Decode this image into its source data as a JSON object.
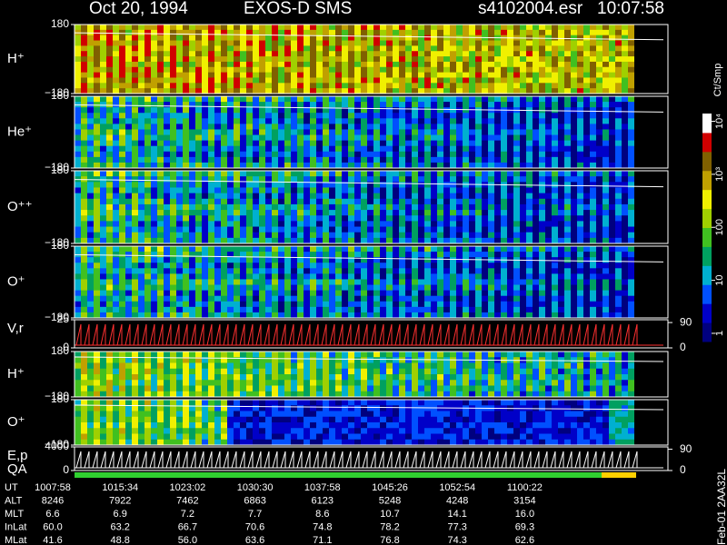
{
  "header": {
    "date": "Oct 20, 1994",
    "instrument": "EXOS-D SMS",
    "file": "s4102004.esr",
    "time": "10:07:58",
    "footer": "Feb-01 2AA32L"
  },
  "chart_data": [
    {
      "type": "spectrogram",
      "label": "H⁺",
      "ylim": [
        -180,
        180
      ],
      "yticks": [
        {
          "value": 180,
          "label": "180"
        },
        {
          "value": -180,
          "label": "−180"
        }
      ]
    },
    {
      "type": "spectrogram",
      "label": "He⁺",
      "ylim": [
        -180,
        180
      ],
      "yticks": [
        {
          "value": 180,
          "label": "180"
        },
        {
          "value": -180,
          "label": "−180"
        }
      ]
    },
    {
      "type": "spectrogram",
      "label": "O⁺⁺",
      "ylim": [
        -180,
        180
      ],
      "yticks": [
        {
          "value": 180,
          "label": "180"
        },
        {
          "value": -180,
          "label": "−180"
        }
      ]
    },
    {
      "type": "spectrogram",
      "label": "O⁺",
      "ylim": [
        -180,
        180
      ],
      "yticks": [
        {
          "value": 180,
          "label": "180"
        },
        {
          "value": -180,
          "label": "−180"
        }
      ]
    },
    {
      "type": "line",
      "label": "V,r",
      "color": "#ff3030",
      "ylim": [
        0,
        25
      ],
      "yticks": [
        25,
        0
      ],
      "y2lim": [
        0,
        100
      ],
      "y2ticks": [
        90,
        0
      ]
    },
    {
      "type": "spectrogram",
      "label": "H⁺",
      "ylim": [
        -180,
        180
      ],
      "yticks": [
        {
          "value": 180,
          "label": "180"
        },
        {
          "value": -180,
          "label": "−180"
        }
      ]
    },
    {
      "type": "spectrogram",
      "label": "O⁺",
      "ylim": [
        -180,
        180
      ],
      "yticks": [
        {
          "value": 180,
          "label": "180"
        },
        {
          "value": -180,
          "label": "−180"
        }
      ]
    },
    {
      "type": "line",
      "label": "E,p",
      "color": "#ffffff",
      "ylim": [
        0,
        4000
      ],
      "yticks": [
        4000,
        0
      ],
      "y2lim": [
        0,
        100
      ],
      "y2ticks": [
        90,
        0
      ]
    },
    {
      "type": "status",
      "label": "QA"
    },
    {
      "type": "colorbar",
      "label": "Ct/Smp",
      "log_scale": true,
      "ylim": [
        0.7,
        14000
      ],
      "yticks": [
        1,
        10,
        100,
        {
          "value": 1000,
          "label": "10³"
        },
        {
          "value": 10000,
          "label": "10⁴"
        }
      ]
    }
  ],
  "ephemeris": {
    "rows": [
      {
        "label": "UT",
        "values": [
          "1007:58",
          "1015:34",
          "1023:02",
          "1030:30",
          "1037:58",
          "1045:26",
          "1052:54",
          "1100:22"
        ]
      },
      {
        "label": "ALT",
        "values": [
          "8246",
          "7922",
          "7462",
          "6863",
          "6123",
          "5248",
          "4248",
          "3154"
        ]
      },
      {
        "label": "MLT",
        "values": [
          "6.6",
          "6.9",
          "7.2",
          "7.7",
          "8.6",
          "10.7",
          "14.1",
          "16.0"
        ]
      },
      {
        "label": "InLat",
        "values": [
          "60.0",
          "63.2",
          "66.7",
          "70.6",
          "74.8",
          "78.2",
          "77.3",
          "69.3"
        ]
      },
      {
        "label": "MLat",
        "values": [
          "41.6",
          "48.8",
          "56.0",
          "63.6",
          "71.1",
          "76.8",
          "74.3",
          "62.6"
        ]
      }
    ]
  }
}
